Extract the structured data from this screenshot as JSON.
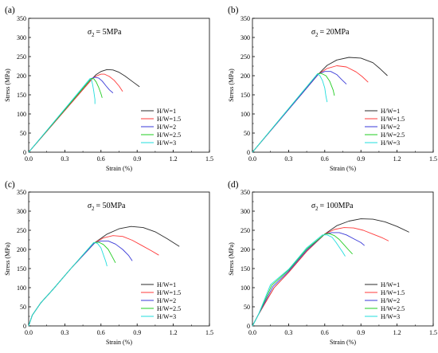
{
  "legend": [
    "H/W=1",
    "H/W=1.5",
    "H/W=2",
    "H/W=2.5",
    "H/W=3"
  ],
  "colors": [
    "#2b2b2b",
    "#ff3b3b",
    "#3a3ad8",
    "#22cc22",
    "#22dddd"
  ],
  "chart_data": [
    {
      "type": "line",
      "panel": "(a)",
      "sigma_label": "= 5MPa",
      "xlabel": "Strain (%)",
      "ylabel": "Stress (MPa)",
      "xlim": [
        0,
        1.5
      ],
      "ylim": [
        0,
        350
      ],
      "xticks": [
        "0.0",
        "0.3",
        "0.6",
        "0.9",
        "1.2",
        "1.5"
      ],
      "yticks": [
        "0",
        "50",
        "100",
        "150",
        "200",
        "250",
        "300",
        "350"
      ],
      "series": [
        {
          "name": "H/W=1",
          "x": [
            0,
            0.53,
            0.56,
            0.6,
            0.65,
            0.7,
            0.75,
            0.8,
            0.86,
            0.92
          ],
          "y": [
            0,
            193,
            203,
            211,
            216,
            215,
            209,
            199,
            185,
            171
          ]
        },
        {
          "name": "H/W=1.5",
          "x": [
            0,
            0.53,
            0.56,
            0.6,
            0.63,
            0.67,
            0.71,
            0.75,
            0.78
          ],
          "y": [
            0,
            193,
            199,
            204,
            204,
            198,
            188,
            173,
            159
          ]
        },
        {
          "name": "H/W=2",
          "x": [
            0,
            0.52,
            0.55,
            0.58,
            0.61,
            0.64,
            0.67,
            0.7
          ],
          "y": [
            0,
            193,
            196,
            194,
            186,
            174,
            163,
            155
          ]
        },
        {
          "name": "H/W=2.5",
          "x": [
            0,
            0.52,
            0.54,
            0.56,
            0.58,
            0.6,
            0.61
          ],
          "y": [
            0,
            193,
            192,
            184,
            170,
            153,
            142
          ]
        },
        {
          "name": "H/W=3",
          "x": [
            0,
            0.51,
            0.52,
            0.53,
            0.54,
            0.55,
            0.55
          ],
          "y": [
            0,
            193,
            190,
            178,
            160,
            138,
            126
          ]
        }
      ]
    },
    {
      "type": "line",
      "panel": "(b)",
      "sigma_label": "= 20MPa",
      "xlabel": "Strain (%)",
      "ylabel": "Stress (MPa)",
      "xlim": [
        0,
        1.5
      ],
      "ylim": [
        0,
        350
      ],
      "xticks": [
        "0.0",
        "0.3",
        "0.6",
        "0.9",
        "1.2",
        "1.5"
      ],
      "yticks": [
        "0",
        "50",
        "100",
        "150",
        "200",
        "250",
        "300",
        "350"
      ],
      "series": [
        {
          "name": "H/W=1",
          "x": [
            0,
            0.55,
            0.62,
            0.7,
            0.8,
            0.9,
            1.0,
            1.06,
            1.12
          ],
          "y": [
            0,
            205,
            227,
            241,
            248,
            246,
            234,
            218,
            200
          ]
        },
        {
          "name": "H/W=1.5",
          "x": [
            0,
            0.55,
            0.62,
            0.7,
            0.78,
            0.86,
            0.91,
            0.96
          ],
          "y": [
            0,
            205,
            219,
            226,
            223,
            210,
            198,
            183
          ]
        },
        {
          "name": "H/W=2",
          "x": [
            0,
            0.55,
            0.6,
            0.65,
            0.7,
            0.74,
            0.78
          ],
          "y": [
            0,
            205,
            211,
            211,
            203,
            190,
            178
          ]
        },
        {
          "name": "H/W=2.5",
          "x": [
            0,
            0.54,
            0.57,
            0.61,
            0.64,
            0.67,
            0.68
          ],
          "y": [
            0,
            205,
            206,
            200,
            186,
            162,
            148
          ]
        },
        {
          "name": "H/W=3",
          "x": [
            0,
            0.54,
            0.56,
            0.58,
            0.6,
            0.61,
            0.62
          ],
          "y": [
            0,
            205,
            200,
            188,
            168,
            146,
            131
          ]
        }
      ]
    },
    {
      "type": "line",
      "panel": "(c)",
      "sigma_label": "= 50MPa",
      "xlabel": "Strain (%)",
      "ylabel": "Stress (MPa)",
      "xlim": [
        0,
        1.5
      ],
      "ylim": [
        0,
        350
      ],
      "xticks": [
        "0.0",
        "0.3",
        "0.6",
        "0.9",
        "1.2",
        "1.5"
      ],
      "yticks": [
        "0",
        "50",
        "100",
        "150",
        "200",
        "250",
        "300",
        "350"
      ],
      "series": [
        {
          "name": "H/W=1",
          "x": [
            0,
            0.03,
            0.1,
            0.2,
            0.35,
            0.55,
            0.65,
            0.75,
            0.85,
            0.95,
            1.05,
            1.15,
            1.25
          ],
          "y": [
            0,
            28,
            60,
            95,
            150,
            218,
            240,
            254,
            260,
            257,
            246,
            228,
            208
          ]
        },
        {
          "name": "H/W=1.5",
          "x": [
            0,
            0.03,
            0.1,
            0.2,
            0.35,
            0.55,
            0.62,
            0.7,
            0.78,
            0.86,
            0.94,
            1.02,
            1.08
          ],
          "y": [
            0,
            28,
            60,
            95,
            150,
            218,
            230,
            236,
            234,
            224,
            210,
            196,
            185
          ]
        },
        {
          "name": "H/W=2",
          "x": [
            0,
            0.03,
            0.1,
            0.2,
            0.35,
            0.55,
            0.6,
            0.66,
            0.72,
            0.78,
            0.83,
            0.86
          ],
          "y": [
            0,
            28,
            60,
            95,
            150,
            218,
            222,
            222,
            214,
            200,
            184,
            170
          ]
        },
        {
          "name": "H/W=2.5",
          "x": [
            0,
            0.03,
            0.1,
            0.2,
            0.35,
            0.54,
            0.58,
            0.62,
            0.66,
            0.69,
            0.72
          ],
          "y": [
            0,
            28,
            60,
            95,
            150,
            218,
            219,
            213,
            200,
            183,
            165
          ]
        },
        {
          "name": "H/W=3",
          "x": [
            0,
            0.03,
            0.1,
            0.2,
            0.35,
            0.54,
            0.57,
            0.6,
            0.62,
            0.64,
            0.65
          ],
          "y": [
            0,
            28,
            60,
            95,
            150,
            218,
            216,
            204,
            186,
            168,
            156
          ]
        }
      ]
    },
    {
      "type": "line",
      "panel": "(d)",
      "sigma_label": "= 100MPa",
      "xlabel": "Strain (%)",
      "ylabel": "Stress (MPa)",
      "xlim": [
        0,
        1.5
      ],
      "ylim": [
        0,
        350
      ],
      "xticks": [
        "0.0",
        "0.3",
        "0.6",
        "0.9",
        "1.2",
        "1.5"
      ],
      "yticks": [
        "0",
        "50",
        "100",
        "150",
        "200",
        "250",
        "300",
        "350"
      ],
      "series": [
        {
          "name": "H/W=1",
          "x": [
            0,
            0.05,
            0.18,
            0.3,
            0.45,
            0.6,
            0.7,
            0.8,
            0.9,
            1.0,
            1.1,
            1.2,
            1.3
          ],
          "y": [
            0,
            30,
            100,
            140,
            195,
            240,
            262,
            274,
            280,
            279,
            272,
            260,
            245
          ]
        },
        {
          "name": "H/W=1.5",
          "x": [
            0,
            0.05,
            0.18,
            0.3,
            0.45,
            0.6,
            0.68,
            0.76,
            0.84,
            0.92,
            1.0,
            1.08,
            1.13
          ],
          "y": [
            0,
            30,
            100,
            140,
            195,
            240,
            252,
            257,
            256,
            250,
            240,
            230,
            222
          ]
        },
        {
          "name": "H/W=2",
          "x": [
            0,
            0.05,
            0.17,
            0.3,
            0.45,
            0.6,
            0.66,
            0.72,
            0.78,
            0.84,
            0.9,
            0.93
          ],
          "y": [
            0,
            30,
            103,
            143,
            198,
            240,
            244,
            244,
            238,
            228,
            218,
            210
          ]
        },
        {
          "name": "H/W=2.5",
          "x": [
            0,
            0.05,
            0.16,
            0.3,
            0.45,
            0.6,
            0.64,
            0.68,
            0.72,
            0.76,
            0.8,
            0.83
          ],
          "y": [
            0,
            30,
            106,
            146,
            201,
            240,
            241,
            236,
            226,
            212,
            198,
            188
          ]
        },
        {
          "name": "H/W=3",
          "x": [
            0,
            0.05,
            0.15,
            0.3,
            0.45,
            0.58,
            0.62,
            0.66,
            0.69,
            0.72,
            0.75,
            0.77
          ],
          "y": [
            0,
            30,
            108,
            148,
            204,
            238,
            238,
            232,
            220,
            206,
            192,
            182
          ]
        }
      ]
    }
  ]
}
